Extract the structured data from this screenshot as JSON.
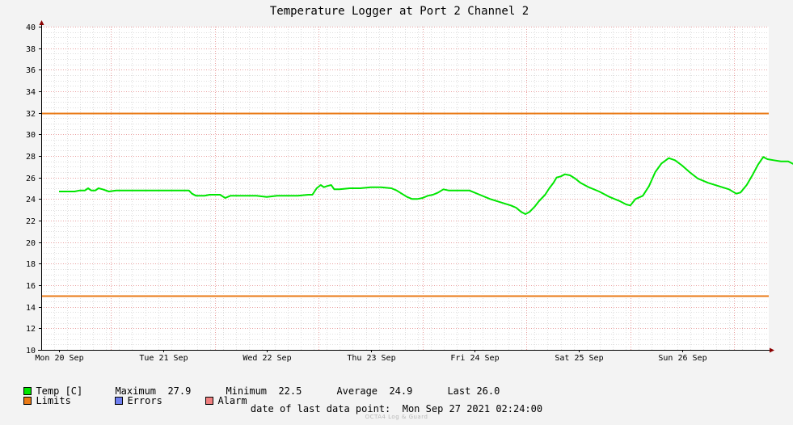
{
  "chart_data": {
    "type": "line",
    "title": "Temperature Logger at Port 2 Channel 2",
    "ylim": [
      10,
      40
    ],
    "y_ticks": [
      10,
      12,
      14,
      16,
      18,
      20,
      22,
      24,
      26,
      28,
      30,
      32,
      34,
      36,
      38,
      40
    ],
    "x_labels": [
      "Mon 20 Sep",
      "Tue 21 Sep",
      "Wed 22 Sep",
      "Thu 23 Sep",
      "Fri 24 Sep",
      "Sat 25 Sep",
      "Sun 26 Sep"
    ],
    "grid": true,
    "limits": {
      "upper": 32,
      "lower": 15,
      "color": "#ea7a16"
    },
    "series": [
      {
        "name": "Temp [C]",
        "color": "#00e600",
        "points": [
          [
            0.0,
            24.7
          ],
          [
            0.1,
            24.7
          ],
          [
            0.15,
            24.7
          ],
          [
            0.2,
            24.8
          ],
          [
            0.25,
            24.8
          ],
          [
            0.28,
            25.0
          ],
          [
            0.31,
            24.8
          ],
          [
            0.35,
            24.8
          ],
          [
            0.38,
            25.0
          ],
          [
            0.42,
            24.9
          ],
          [
            0.48,
            24.7
          ],
          [
            0.55,
            24.8
          ],
          [
            0.7,
            24.8
          ],
          [
            0.9,
            24.8
          ],
          [
            1.1,
            24.8
          ],
          [
            1.18,
            24.8
          ],
          [
            1.25,
            24.8
          ],
          [
            1.28,
            24.5
          ],
          [
            1.32,
            24.3
          ],
          [
            1.4,
            24.3
          ],
          [
            1.45,
            24.4
          ],
          [
            1.5,
            24.4
          ],
          [
            1.55,
            24.4
          ],
          [
            1.6,
            24.1
          ],
          [
            1.65,
            24.3
          ],
          [
            1.7,
            24.3
          ],
          [
            1.8,
            24.3
          ],
          [
            1.9,
            24.3
          ],
          [
            2.0,
            24.2
          ],
          [
            2.1,
            24.3
          ],
          [
            2.2,
            24.3
          ],
          [
            2.3,
            24.3
          ],
          [
            2.4,
            24.4
          ],
          [
            2.44,
            24.4
          ],
          [
            2.48,
            25.0
          ],
          [
            2.52,
            25.3
          ],
          [
            2.55,
            25.1
          ],
          [
            2.58,
            25.2
          ],
          [
            2.62,
            25.3
          ],
          [
            2.65,
            24.9
          ],
          [
            2.7,
            24.9
          ],
          [
            2.8,
            25.0
          ],
          [
            2.9,
            25.0
          ],
          [
            3.0,
            25.1
          ],
          [
            3.1,
            25.1
          ],
          [
            3.2,
            25.0
          ],
          [
            3.25,
            24.8
          ],
          [
            3.3,
            24.5
          ],
          [
            3.35,
            24.2
          ],
          [
            3.4,
            24.0
          ],
          [
            3.45,
            24.0
          ],
          [
            3.5,
            24.1
          ],
          [
            3.55,
            24.3
          ],
          [
            3.6,
            24.4
          ],
          [
            3.65,
            24.6
          ],
          [
            3.7,
            24.9
          ],
          [
            3.75,
            24.8
          ],
          [
            3.85,
            24.8
          ],
          [
            3.95,
            24.8
          ],
          [
            4.05,
            24.4
          ],
          [
            4.15,
            24.0
          ],
          [
            4.25,
            23.7
          ],
          [
            4.35,
            23.4
          ],
          [
            4.4,
            23.2
          ],
          [
            4.45,
            22.8
          ],
          [
            4.49,
            22.6
          ],
          [
            4.53,
            22.8
          ],
          [
            4.58,
            23.3
          ],
          [
            4.62,
            23.8
          ],
          [
            4.68,
            24.4
          ],
          [
            4.72,
            25.0
          ],
          [
            4.76,
            25.5
          ],
          [
            4.79,
            26.0
          ],
          [
            4.83,
            26.1
          ],
          [
            4.87,
            26.3
          ],
          [
            4.92,
            26.2
          ],
          [
            4.97,
            25.9
          ],
          [
            5.02,
            25.5
          ],
          [
            5.1,
            25.1
          ],
          [
            5.2,
            24.7
          ],
          [
            5.3,
            24.2
          ],
          [
            5.4,
            23.8
          ],
          [
            5.46,
            23.5
          ],
          [
            5.5,
            23.4
          ],
          [
            5.55,
            24.0
          ],
          [
            5.62,
            24.3
          ],
          [
            5.68,
            25.2
          ],
          [
            5.74,
            26.5
          ],
          [
            5.8,
            27.3
          ],
          [
            5.87,
            27.8
          ],
          [
            5.93,
            27.6
          ],
          [
            6.0,
            27.1
          ],
          [
            6.07,
            26.5
          ],
          [
            6.15,
            25.9
          ],
          [
            6.25,
            25.5
          ],
          [
            6.35,
            25.2
          ],
          [
            6.45,
            24.9
          ],
          [
            6.52,
            24.5
          ],
          [
            6.56,
            24.6
          ],
          [
            6.62,
            25.3
          ],
          [
            6.68,
            26.3
          ],
          [
            6.73,
            27.2
          ],
          [
            6.78,
            27.9
          ],
          [
            6.82,
            27.7
          ],
          [
            6.88,
            27.6
          ],
          [
            6.95,
            27.5
          ],
          [
            7.02,
            27.5
          ],
          [
            7.08,
            27.2
          ],
          [
            7.15,
            26.8
          ],
          [
            7.22,
            26.4
          ],
          [
            7.3,
            26.1
          ],
          [
            7.33,
            26.0
          ]
        ]
      }
    ],
    "legend_placement": "bottom"
  },
  "legend": {
    "temp_label": "Temp [C]",
    "limits_label": "Limits",
    "errors_label": "Errors",
    "alarm_label": "Alarm",
    "colors": {
      "temp": "#00e600",
      "limits": "#ea7a16",
      "errors": "#6f7ff0",
      "alarm": "#ef7f7f"
    }
  },
  "stats": {
    "maximum_label": "Maximum",
    "maximum_value": "27.9",
    "minimum_label": "Minimum",
    "minimum_value": "22.5",
    "average_label": "Average",
    "average_value": "24.9",
    "last_label": "Last",
    "last_value": "26.0"
  },
  "footer": {
    "last_data_label": "date of last data point:",
    "last_data_value": "Mon Sep 27 2021 02:24:00",
    "watermark": "OCTA4 Log & Guard"
  }
}
